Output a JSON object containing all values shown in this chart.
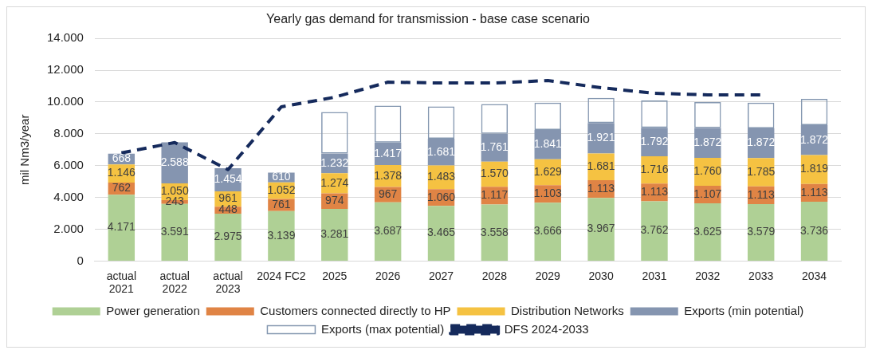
{
  "chart_data": {
    "type": "bar",
    "title": "Yearly gas demand for transmission - base case scenario",
    "ylabel": "mil Nm3/year",
    "stacked": true,
    "grid": "y",
    "legend": "bottom",
    "categories": [
      "actual 2021",
      "actual 2022",
      "actual 2023",
      "2024 FC2",
      "2025",
      "2026",
      "2027",
      "2028",
      "2029",
      "2030",
      "2031",
      "2032",
      "2033",
      "2034"
    ],
    "ylim": [
      0,
      14000
    ],
    "yticks": [
      {
        "value": 0,
        "label": "0"
      },
      {
        "value": 2000,
        "label": "2.000"
      },
      {
        "value": 4000,
        "label": "4.000"
      },
      {
        "value": 6000,
        "label": "6.000"
      },
      {
        "value": 8000,
        "label": "8.000"
      },
      {
        "value": 10000,
        "label": "10.000"
      },
      {
        "value": 12000,
        "label": "12.000"
      },
      {
        "value": 14000,
        "label": "14.000"
      }
    ],
    "series": [
      {
        "name": "Power generation",
        "color": "#afd095",
        "values": [
          4171,
          3591,
          2975,
          3139,
          3281,
          3687,
          3465,
          3558,
          3666,
          3967,
          3762,
          3625,
          3579,
          3736
        ],
        "value_labels": [
          "4.171",
          "3.591",
          "2.975",
          "3.139",
          "3.281",
          "3.687",
          "3.465",
          "3.558",
          "3.666",
          "3.967",
          "3.762",
          "3.625",
          "3.579",
          "3.736"
        ]
      },
      {
        "name": "Customers connected directly to HP",
        "color": "#e08445",
        "values": [
          762,
          243,
          448,
          761,
          974,
          967,
          1060,
          1117,
          1103,
          1113,
          1113,
          1107,
          1113,
          1113
        ],
        "value_labels": [
          "762",
          "243",
          "448",
          "761",
          "974",
          "967",
          "1.060",
          "1.117",
          "1.103",
          "1.113",
          "1.113",
          "1.107",
          "1.113",
          "1.113"
        ]
      },
      {
        "name": "Distribution Networks",
        "color": "#f5c242",
        "values": [
          1146,
          1050,
          961,
          1052,
          1274,
          1378,
          1483,
          1570,
          1629,
          1681,
          1716,
          1760,
          1785,
          1819
        ],
        "value_labels": [
          "1.146",
          "1.050",
          "961",
          "1.052",
          "1.274",
          "1.378",
          "1.483",
          "1.570",
          "1.629",
          "1.681",
          "1.716",
          "1.760",
          "1.785",
          "1.819"
        ]
      },
      {
        "name": "Exports (min potential)",
        "color": "#8595b0",
        "values": [
          668,
          2588,
          1454,
          610,
          1232,
          1417,
          1681,
          1761,
          1841,
          1921,
          1792,
          1872,
          1872,
          1872
        ],
        "value_labels": [
          "668",
          "2.588",
          "1.454",
          "610",
          "1.232",
          "1.417",
          "1.681",
          "1.761",
          "1.841",
          "1.921",
          "1.792",
          "1.872",
          "1.872",
          "1.872"
        ]
      },
      {
        "name": "Exports (max potential)",
        "color": "#8497b0",
        "values": [
          null,
          null,
          null,
          null,
          2610,
          2320,
          2040,
          1870,
          1720,
          1580,
          1720,
          1640,
          1610,
          1660
        ]
      },
      {
        "name": "DFS 2024-2033",
        "type": "line",
        "color": "#152a5c",
        "line_style": "dashed",
        "marker": "none",
        "values": [
          6800,
          7450,
          5750,
          9700,
          10300,
          11250,
          11200,
          11200,
          11350,
          10900,
          10550,
          10450,
          10450,
          null
        ]
      }
    ]
  }
}
